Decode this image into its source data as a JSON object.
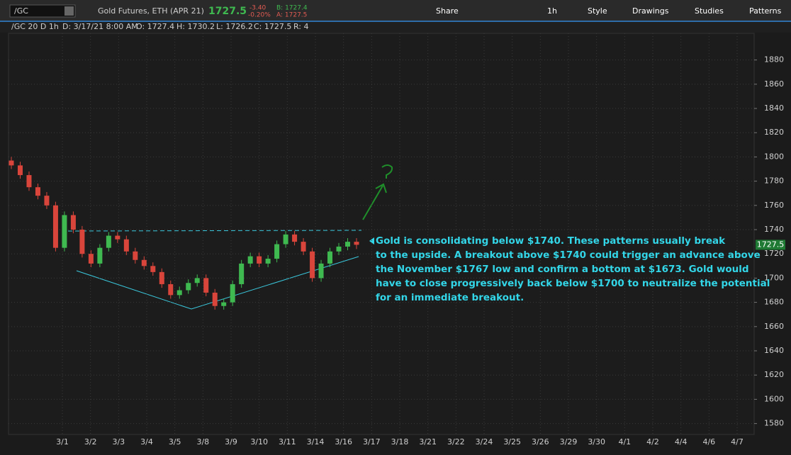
{
  "toolbar": {
    "symbol": "/GC",
    "description": "Gold Futures, ETH (APR 21)",
    "last": "1727.5",
    "change": "-3.40",
    "change_pct": "-0.20%",
    "bid": "B: 1727.4",
    "ask": "A: 1727.5",
    "buttons": [
      "Share",
      "1h",
      "Style",
      "Drawings",
      "Studies",
      "Patterns"
    ]
  },
  "info_bar": [
    "/GC 20 D 1h",
    "D: 3/17/21 8:00 AM",
    "O: 1727.4",
    "H: 1730.2",
    "L: 1726.2",
    "C: 1727.5",
    "R: 4"
  ],
  "chart_data": {
    "type": "candlestick",
    "open": [
      1797,
      1793,
      1785,
      1775,
      1768,
      1760,
      1725,
      1752,
      1740,
      1720,
      1712,
      1725,
      1735,
      1732,
      1722,
      1715,
      1710,
      1705,
      1695,
      1686,
      1690,
      1696,
      1700,
      1688,
      1677,
      1680,
      1695,
      1712,
      1718,
      1712,
      1716,
      1728,
      1736,
      1730,
      1722,
      1700,
      1712,
      1722,
      1726,
      1730
    ],
    "high": [
      1800,
      1796,
      1788,
      1778,
      1771,
      1763,
      1755,
      1755,
      1743,
      1723,
      1728,
      1738,
      1738,
      1735,
      1725,
      1718,
      1713,
      1708,
      1698,
      1693,
      1699,
      1703,
      1703,
      1691,
      1683,
      1698,
      1715,
      1721,
      1721,
      1719,
      1731,
      1739,
      1739,
      1733,
      1725,
      1715,
      1725,
      1729,
      1733,
      1733
    ],
    "low": [
      1790,
      1782,
      1772,
      1765,
      1757,
      1722,
      1722,
      1737,
      1717,
      1709,
      1709,
      1722,
      1729,
      1719,
      1712,
      1707,
      1702,
      1692,
      1683,
      1683,
      1687,
      1693,
      1685,
      1674,
      1674,
      1677,
      1692,
      1709,
      1709,
      1709,
      1713,
      1725,
      1727,
      1719,
      1697,
      1697,
      1709,
      1719,
      1723,
      1724
    ],
    "close": [
      1793,
      1785,
      1775,
      1768,
      1760,
      1725,
      1752,
      1740,
      1720,
      1712,
      1725,
      1735,
      1732,
      1722,
      1715,
      1710,
      1705,
      1695,
      1686,
      1690,
      1696,
      1700,
      1688,
      1677,
      1680,
      1695,
      1712,
      1718,
      1712,
      1716,
      1728,
      1736,
      1730,
      1722,
      1700,
      1712,
      1722,
      1726,
      1730,
      1727.5
    ],
    "up_color": "#3fb950",
    "down_color": "#d9453b",
    "ylim": [
      1571,
      1902
    ],
    "yticks": [
      1580,
      1600,
      1620,
      1640,
      1660,
      1680,
      1700,
      1720,
      1740,
      1760,
      1780,
      1800,
      1820,
      1840,
      1860,
      1880
    ],
    "xticks": [
      "3/1",
      "3/2",
      "3/3",
      "3/4",
      "3/5",
      "3/8",
      "3/9",
      "3/10",
      "3/11",
      "3/14",
      "3/16",
      "3/17",
      "3/18",
      "3/21",
      "3/22",
      "3/24",
      "3/25",
      "3/26",
      "3/29",
      "3/30",
      "4/1",
      "4/2",
      "4/4",
      "4/6",
      "4/7"
    ],
    "grid": true,
    "annotation": [
      "Gold is consolidating below $1740. These patterns usually break",
      " to the upside. A breakout above $1740 could trigger an advance above",
      "the November $1767 low and confirm a bottom at $1673. Gold would",
      "have to close progressively back below $1700 to neutralize the potential",
      "for an immediate breakout."
    ]
  }
}
